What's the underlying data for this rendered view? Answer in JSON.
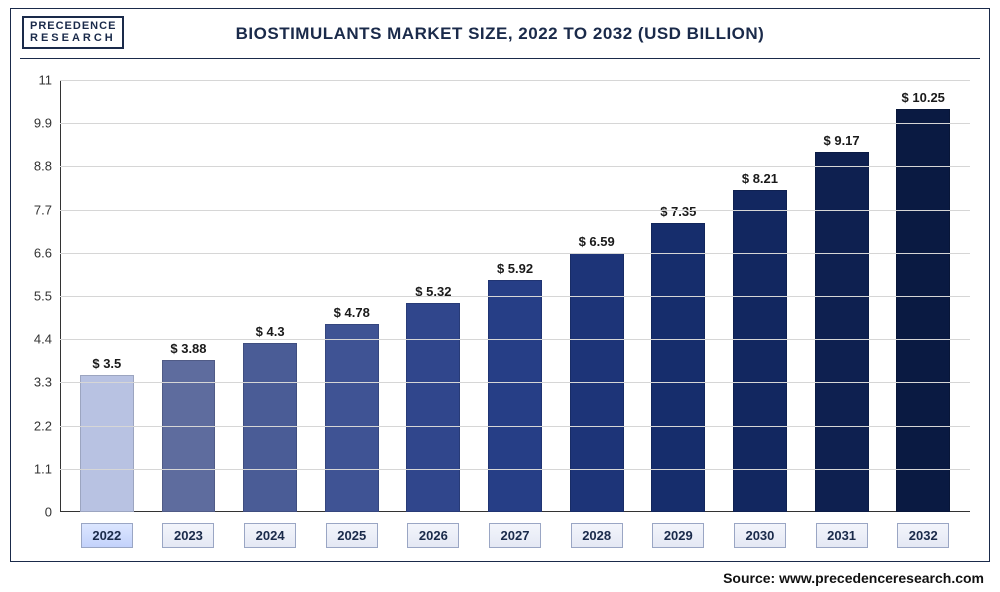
{
  "logo": {
    "line1": "PRECEDENCE",
    "line2": "RESEARCH"
  },
  "title": "BIOSTIMULANTS MARKET SIZE, 2022 TO 2032 (USD BILLION)",
  "source": "Source: www.precedenceresearch.com",
  "chart": {
    "type": "bar",
    "categories": [
      "2022",
      "2023",
      "2024",
      "2025",
      "2026",
      "2027",
      "2028",
      "2029",
      "2030",
      "2031",
      "2032"
    ],
    "values": [
      3.5,
      3.88,
      4.3,
      4.78,
      5.32,
      5.92,
      6.59,
      7.35,
      8.21,
      9.17,
      10.25
    ],
    "value_labels": [
      "$ 3.5",
      "$ 3.88",
      "$ 4.3",
      "$ 4.78",
      "$ 5.32",
      "$ 5.92",
      "$ 6.59",
      "$ 7.35",
      "$ 8.21",
      "$ 9.17",
      "$ 10.25"
    ],
    "bar_colors": [
      "#b8c2e2",
      "#5e6c9e",
      "#4a5c96",
      "#3f5394",
      "#30468c",
      "#263e86",
      "#1d3478",
      "#162d6c",
      "#122760",
      "#0e2050",
      "#0a1a42"
    ],
    "ylim": [
      0,
      11
    ],
    "yticks": [
      0,
      1.1,
      2.2,
      3.3,
      4.4,
      5.5,
      6.6,
      7.7,
      8.8,
      9.9,
      11
    ],
    "ytick_labels": [
      "0",
      "1.1",
      "2.2",
      "3.3",
      "4.4",
      "5.5",
      "6.6",
      "7.7",
      "8.8",
      "9.9",
      "11"
    ],
    "grid_color": "#d6d6d6",
    "background_color": "#ffffff",
    "title_fontsize": 17,
    "label_fontsize": 13,
    "bar_width": 0.66
  }
}
